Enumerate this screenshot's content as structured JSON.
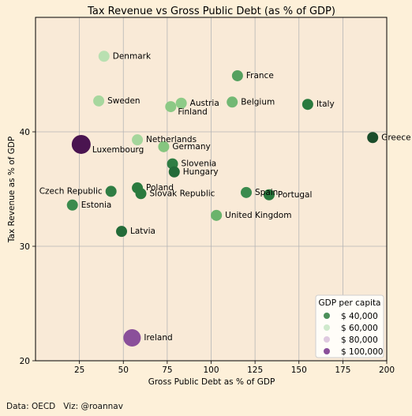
{
  "chart_data": {
    "type": "scatter",
    "title": "Tax Revenue vs Gross Public Debt (as % of GDP)",
    "xlabel": "Gross Public Debt as % of GDP",
    "ylabel": "Tax Revenue as % of GDP",
    "xlim": [
      0,
      200
    ],
    "ylim": [
      20,
      50
    ],
    "xticks": [
      25,
      50,
      75,
      100,
      125,
      150,
      175,
      200
    ],
    "yticks": [
      20,
      30,
      40
    ],
    "grid": true,
    "size_encodes": "GDP per capita",
    "color_encodes": "GDP per capita",
    "legend": {
      "title": "GDP per capita",
      "position": "bottom-right",
      "entries": [
        {
          "label": "$ 40,000",
          "color": "#4b8f5a"
        },
        {
          "label": "$ 60,000",
          "color": "#cfe9cc"
        },
        {
          "label": "$ 80,000",
          "color": "#dfc9e0"
        },
        {
          "label": "$ 100,000",
          "color": "#8a4f9a"
        }
      ]
    },
    "points": [
      {
        "country": "Denmark",
        "x": 39,
        "y": 46.6,
        "color": "#b9e0b1",
        "label_side": "right"
      },
      {
        "country": "France",
        "x": 115,
        "y": 44.9,
        "color": "#55a05f",
        "label_side": "right"
      },
      {
        "country": "Sweden",
        "x": 36,
        "y": 42.7,
        "color": "#a7d79e",
        "label_side": "right"
      },
      {
        "country": "Austria",
        "x": 83,
        "y": 42.5,
        "color": "#8ecb87",
        "label_side": "right"
      },
      {
        "country": "Finland",
        "x": 77,
        "y": 42.2,
        "color": "#8cc985",
        "label_side": "below-right"
      },
      {
        "country": "Belgium",
        "x": 112,
        "y": 42.6,
        "color": "#72b874",
        "label_side": "right"
      },
      {
        "country": "Italy",
        "x": 155,
        "y": 42.4,
        "color": "#2a7a3e",
        "label_side": "right"
      },
      {
        "country": "Greece",
        "x": 192,
        "y": 39.5,
        "color": "#1b4d2b",
        "label_side": "right"
      },
      {
        "country": "Luxembourg",
        "x": 26,
        "y": 38.9,
        "color": "#4a1450",
        "label_side": "below-right"
      },
      {
        "country": "Netherlands",
        "x": 58,
        "y": 39.3,
        "color": "#a5d69c",
        "label_side": "right"
      },
      {
        "country": "Germany",
        "x": 73,
        "y": 38.7,
        "color": "#86c57f",
        "label_side": "right"
      },
      {
        "country": "Slovenia",
        "x": 78,
        "y": 37.2,
        "color": "#2f7d43",
        "label_side": "right"
      },
      {
        "country": "Hungary",
        "x": 79,
        "y": 36.5,
        "color": "#236b38",
        "label_side": "right"
      },
      {
        "country": "Czech Republic",
        "x": 43,
        "y": 34.8,
        "color": "#2f7d43",
        "label_side": "left"
      },
      {
        "country": "Poland",
        "x": 58,
        "y": 35.1,
        "color": "#2a7a3e",
        "label_side": "right"
      },
      {
        "country": "Slovak Republic",
        "x": 60,
        "y": 34.6,
        "color": "#2a7a3e",
        "label_side": "right"
      },
      {
        "country": "Spain",
        "x": 120,
        "y": 34.7,
        "color": "#3b8b4e",
        "label_side": "right"
      },
      {
        "country": "Portugal",
        "x": 133,
        "y": 34.5,
        "color": "#2a7a3e",
        "label_side": "right"
      },
      {
        "country": "Estonia",
        "x": 21,
        "y": 33.6,
        "color": "#3b8b4e",
        "label_side": "right"
      },
      {
        "country": "United Kingdom",
        "x": 103,
        "y": 32.7,
        "color": "#6ab36c",
        "label_side": "right"
      },
      {
        "country": "Latvia",
        "x": 49,
        "y": 31.3,
        "color": "#236b38",
        "label_side": "right"
      },
      {
        "country": "Ireland",
        "x": 55,
        "y": 22.0,
        "color": "#8a4f9a",
        "label_side": "right"
      }
    ]
  },
  "footer": {
    "source": "Data: OECD   Viz: @roannav"
  }
}
